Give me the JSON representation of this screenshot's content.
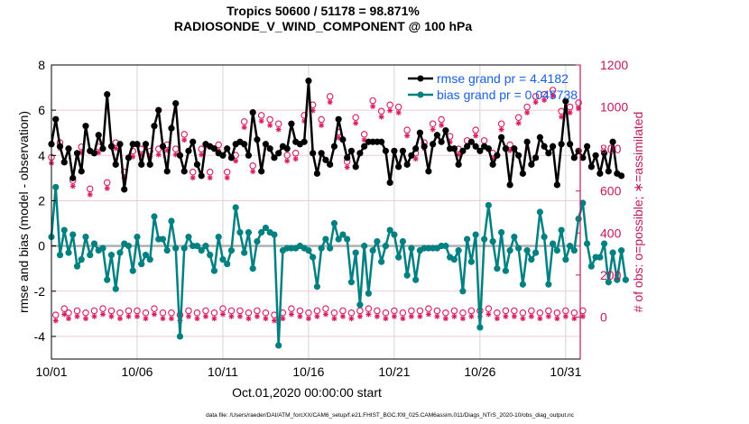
{
  "chart_data": {
    "type": "line",
    "title": "Tropics 50600 / 51178 = 98.871%",
    "subtitle": "RADIOSONDE_V_WIND_COMPONENT @ 100 hPa",
    "xlabel": "Oct.01,2020 00:00:00 start",
    "ylabel_left": "rmse and bias (model - observation)",
    "ylabel_right": "# of obs: o=possible; ∗=assimilated",
    "ylim_left": [
      -5,
      8
    ],
    "ylim_right": [
      -200,
      1200
    ],
    "left_ticks": [
      "-4",
      "-2",
      "0",
      "2",
      "4",
      "6",
      "8"
    ],
    "left_tick_values": [
      -4,
      -2,
      0,
      2,
      4,
      6,
      8
    ],
    "right_ticks": [
      "0",
      "200",
      "400",
      "600",
      "800",
      "1000",
      "1200"
    ],
    "right_tick_values": [
      0,
      200,
      400,
      600,
      800,
      1000,
      1200
    ],
    "x_ticks": [
      "10/01",
      "10/06",
      "10/11",
      "10/16",
      "10/21",
      "10/26",
      "10/31"
    ],
    "x_tick_days": [
      0,
      5,
      10,
      15,
      20,
      25,
      30
    ],
    "x_range_days": [
      0,
      30.85
    ],
    "time_step_days": 0.25,
    "grid": true,
    "legend_position": "top-right",
    "legend": [
      {
        "label": "rmse grand pr = 4.4182",
        "color": "#000000"
      },
      {
        "label": "bias grand pr = 0.045738",
        "color": "#008080"
      }
    ],
    "colors": {
      "rmse": "#000000",
      "bias": "#008080",
      "obs": "#d81b60",
      "zero_line": "#b0b0b0",
      "legend_text": "#1a5ee6",
      "right_axis": "#c2185b",
      "grid_h": "#f2c9d8",
      "grid_v": "#d4d4d4"
    },
    "series": [
      {
        "name": "rmse",
        "axis": "left",
        "values": [
          4.5,
          5.6,
          4.4,
          3.7,
          4.3,
          3.0,
          4.1,
          3.3,
          5.3,
          4.2,
          4.1,
          4.9,
          4.3,
          6.7,
          4.4,
          3.6,
          4.5,
          2.5,
          3.9,
          4.5,
          4.5,
          3.6,
          4.5,
          3.6,
          5.3,
          6.0,
          4.4,
          3.3,
          5.2,
          6.3,
          4.0,
          3.3,
          4.2,
          4.6,
          3.6,
          3.1,
          4.5,
          4.4,
          4.3,
          4.1,
          4.0,
          4.3,
          3.9,
          4.5,
          4.6,
          4.5,
          4.0,
          5.9,
          4.7,
          3.3,
          4.5,
          4.3,
          3.9,
          4.1,
          4.4,
          4.3,
          5.4,
          4.6,
          4.5,
          4.6,
          7.3,
          4.1,
          3.2,
          4.1,
          3.8,
          3.6,
          4.4,
          5.6,
          4.7,
          3.9,
          4.2,
          3.5,
          4.1,
          4.4,
          4.6,
          4.6,
          4.6,
          4.6,
          4.2,
          2.8,
          4.2,
          3.5,
          4.2,
          3.6,
          4.0,
          4.3,
          5.0,
          4.4,
          3.3,
          4.5,
          4.9,
          4.6,
          5.1,
          4.3,
          4.3,
          3.6,
          4.2,
          4.4,
          4.6,
          4.4,
          4.2,
          4.4,
          4.3,
          3.6,
          4.0,
          4.8,
          4.3,
          2.7,
          4.3,
          4.0,
          3.2,
          4.6,
          3.6,
          3.9,
          4.8,
          4.4,
          4.1,
          4.4,
          2.7,
          4.5,
          6.4,
          4.5,
          3.9,
          4.2,
          3.9,
          4.4,
          3.5,
          4.0,
          3.2,
          4.1,
          3.3,
          4.6,
          3.2,
          3.1
        ]
      },
      {
        "name": "bias",
        "axis": "left",
        "values": [
          0.4,
          2.6,
          -0.4,
          0.7,
          -0.3,
          0.5,
          -0.9,
          -0.6,
          0.4,
          -0.4,
          0.1,
          -0.2,
          -0.1,
          -1.5,
          -0.4,
          -1.9,
          -0.3,
          0.1,
          0.0,
          -1.1,
          0.4,
          -0.8,
          -0.4,
          -0.6,
          1.3,
          0.3,
          0.3,
          -0.2,
          1.1,
          -0.1,
          -4.0,
          -0.1,
          0.4,
          0.0,
          0.0,
          -0.2,
          0.0,
          -0.4,
          -1.1,
          0.4,
          -0.6,
          -0.8,
          -0.2,
          1.7,
          0.6,
          -0.3,
          0.6,
          -1.0,
          0.2,
          0.6,
          0.8,
          0.6,
          0.5,
          -4.4,
          -0.2,
          -0.1,
          -0.1,
          -0.1,
          0.0,
          -0.1,
          -0.2,
          -0.5,
          -1.8,
          -0.1,
          0.3,
          -0.1,
          1.0,
          0.3,
          0.5,
          0.3,
          -1.6,
          -0.3,
          -2.6,
          0.0,
          -2.1,
          -0.2,
          0.2,
          -0.7,
          0.0,
          0.7,
          0.5,
          -0.5,
          0.2,
          -1.3,
          -0.1,
          -1.5,
          -0.2,
          -0.1,
          -0.1,
          -0.1,
          -0.1,
          0.0,
          0.0,
          -0.5,
          -0.6,
          -0.2,
          -2.0,
          0.3,
          -0.7,
          0.5,
          -3.6,
          0.3,
          1.8,
          0.2,
          -1.0,
          0.6,
          -1.1,
          -0.2,
          0.4,
          -0.1,
          -1.7,
          -0.2,
          -0.6,
          -0.3,
          1.5,
          0.4,
          -1.7,
          0.1,
          -0.2,
          0.7,
          -0.6,
          0.0,
          -0.2,
          1.2,
          1.9,
          0.1,
          -0.9,
          -0.5,
          -0.5,
          0.1,
          -1.6,
          -0.3,
          -1.5,
          -0.2,
          -1.5
        ]
      },
      {
        "name": "obs_possible",
        "axis": "right",
        "marker": "o",
        "values": [
          760,
          10,
          830,
          40,
          20,
          650,
          30,
          810,
          20,
          610,
          30,
          810,
          40,
          640,
          30,
          830,
          20,
          690,
          30,
          790,
          30,
          800,
          20,
          790,
          40,
          800,
          20,
          820,
          20,
          800,
          10,
          870,
          30,
          690,
          20,
          800,
          30,
          690,
          20,
          820,
          40,
          690,
          30,
          770,
          30,
          930,
          20,
          720,
          30,
          960,
          20,
          940,
          10,
          920,
          20,
          770,
          40,
          780,
          30,
          960,
          20,
          1010,
          30,
          940,
          40,
          1050,
          20,
          880,
          30,
          740,
          20,
          950,
          30,
          870,
          40,
          1030,
          30,
          980,
          20,
          1010,
          30,
          1000,
          20,
          890,
          30,
          780,
          30,
          830,
          40,
          920,
          30,
          940,
          20,
          860,
          30,
          800,
          20,
          840,
          30,
          890,
          30,
          840,
          40,
          780,
          20,
          920,
          30,
          820,
          30,
          950,
          20,
          1000,
          30,
          1050,
          20,
          1060,
          30,
          1080,
          20,
          980,
          30,
          1000,
          20,
          1020,
          30
        ]
      },
      {
        "name": "obs_assimilated",
        "axis": "right",
        "marker": "*",
        "values": [
          750,
          0,
          820,
          30,
          10,
          640,
          20,
          800,
          10,
          600,
          20,
          800,
          30,
          630,
          20,
          820,
          10,
          680,
          20,
          780,
          20,
          790,
          10,
          780,
          30,
          790,
          10,
          810,
          10,
          790,
          0,
          860,
          20,
          680,
          10,
          790,
          20,
          680,
          10,
          810,
          30,
          680,
          20,
          760,
          20,
          920,
          10,
          710,
          20,
          950,
          10,
          930,
          0,
          910,
          10,
          760,
          30,
          770,
          20,
          950,
          10,
          1000,
          20,
          930,
          30,
          1040,
          10,
          870,
          20,
          730,
          10,
          940,
          20,
          860,
          30,
          1020,
          20,
          970,
          10,
          1000,
          20,
          990,
          10,
          880,
          20,
          770,
          20,
          820,
          30,
          910,
          20,
          930,
          10,
          850,
          20,
          790,
          10,
          830,
          20,
          880,
          20,
          830,
          30,
          770,
          10,
          910,
          20,
          810,
          20,
          940,
          10,
          990,
          20,
          1040,
          10,
          1050,
          20,
          1070,
          10,
          970,
          20,
          990,
          10,
          1010,
          20
        ]
      }
    ]
  },
  "footer": {
    "data_file": "data file: /Users/raeder/DAI/ATM_forcXX/CAM6_setup/f.e21.FHIST_BGC.f09_025.CAM6assim.011/Diags_NTrS_2020-10/obs_diag_output.nc"
  }
}
